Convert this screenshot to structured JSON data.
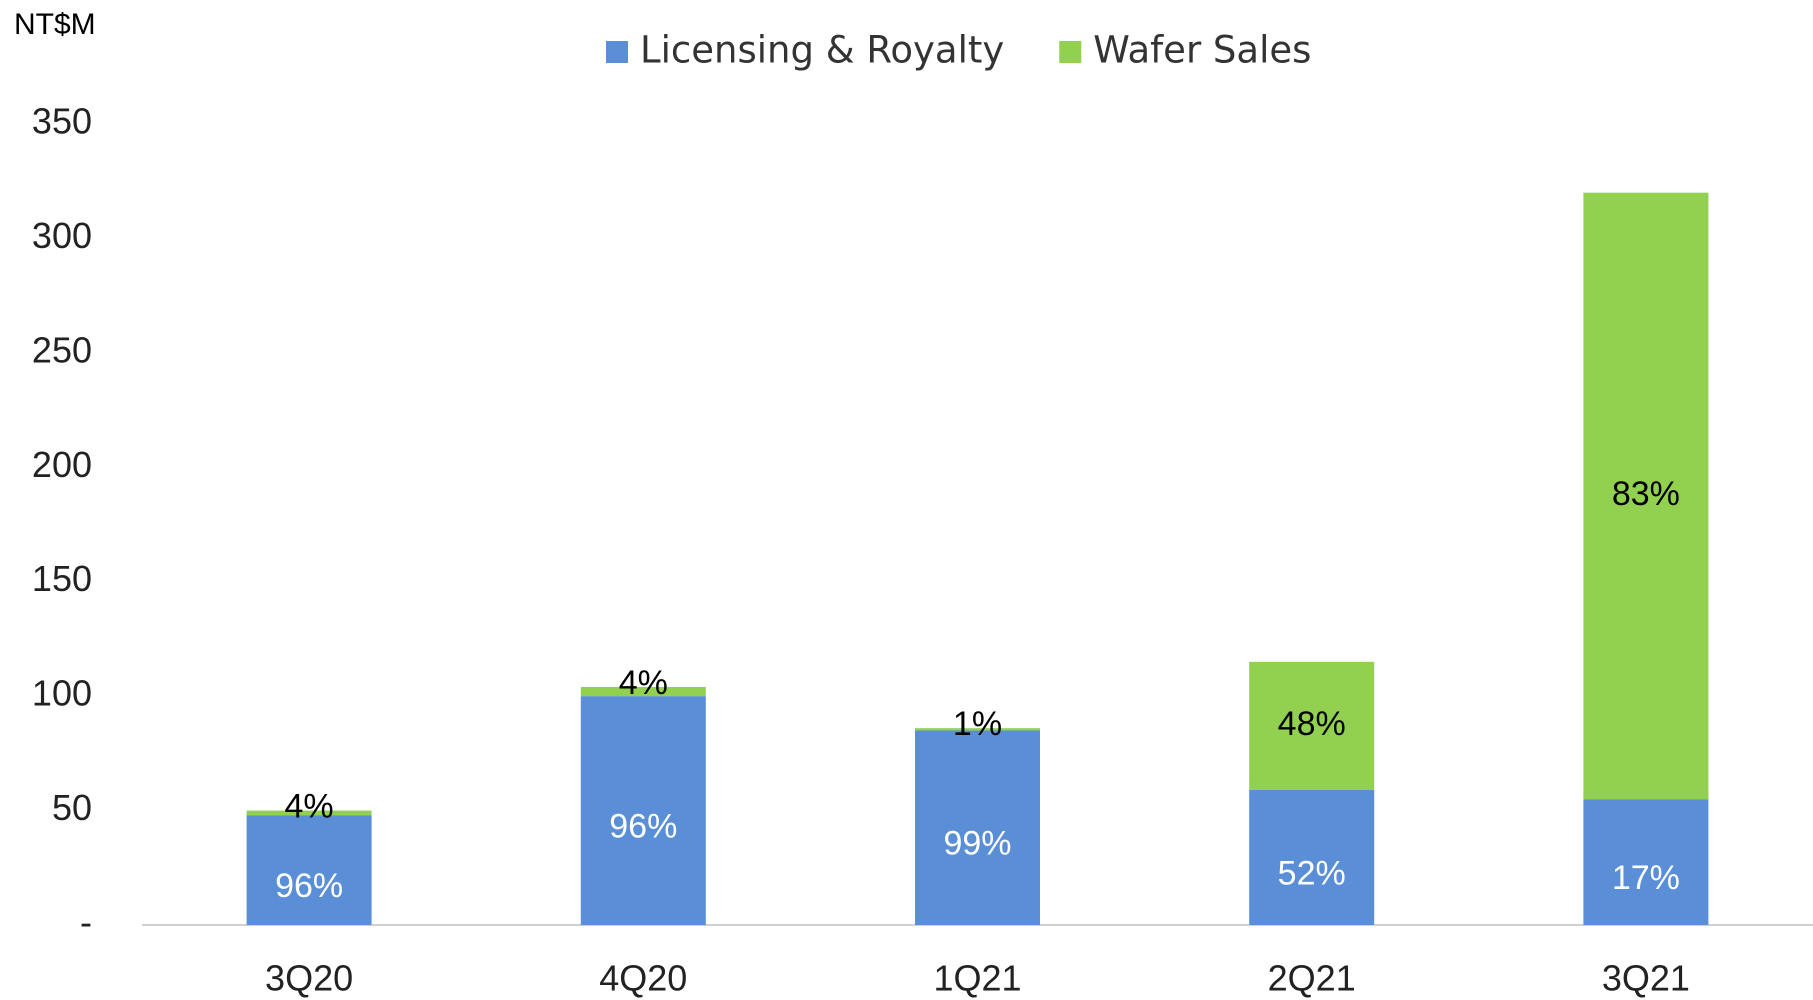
{
  "chart_data": {
    "type": "stacked_bar",
    "y_unit_label": "NT$M",
    "categories": [
      "3Q20",
      "4Q20",
      "1Q21",
      "2Q21",
      "3Q21"
    ],
    "series": [
      {
        "name": "Licensing & Royalty",
        "color": "#5a8fd8",
        "label_color": "#ffffff",
        "values": [
          48,
          100,
          85,
          59,
          55
        ],
        "data_labels": [
          "96%",
          "96%",
          "99%",
          "52%",
          "17%"
        ]
      },
      {
        "name": "Wafer Sales",
        "color": "#92d050",
        "label_color": "#000000",
        "values": [
          2,
          4,
          1,
          56,
          265
        ],
        "data_labels": [
          "4%",
          "4%",
          "1%",
          "48%",
          "83%"
        ]
      }
    ],
    "ylim": [
      0,
      350
    ],
    "yticks": [
      {
        "value": 0,
        "label": "-"
      },
      50,
      100,
      150,
      200,
      250,
      300,
      350
    ],
    "legend": "top"
  }
}
